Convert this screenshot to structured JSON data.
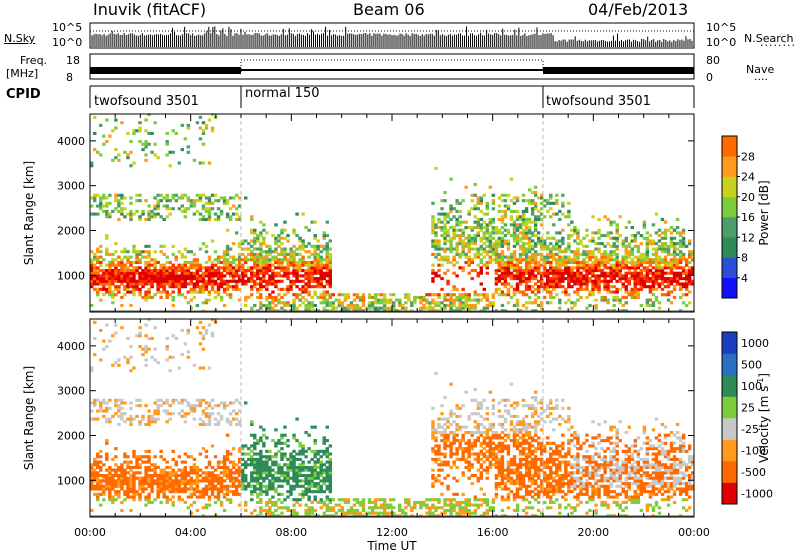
{
  "header": {
    "station": "Inuvik (fitACF)",
    "beam": "Beam 06",
    "date": "04/Feb/2013"
  },
  "summary_panels": {
    "nsky_label": "N.Sky",
    "nsky_ticks": [
      "10^5",
      "10^0"
    ],
    "nsearch_label": "N.Search",
    "nsearch_ticks": [
      "10^5",
      "10^0"
    ],
    "freq_label_top": "Freq.",
    "freq_label_unit": "[MHz]",
    "freq_ticks": [
      "18",
      "8"
    ],
    "nave_label": "Nave",
    "nave_ticks": [
      "80",
      "0"
    ],
    "cpid_label": "CPID",
    "cpid_segments": [
      {
        "name": "twofsound 3501",
        "start_h": 0,
        "end_h": 6
      },
      {
        "name": "normal 150",
        "start_h": 6,
        "end_h": 18
      },
      {
        "name": "twofsound 3501",
        "start_h": 18,
        "end_h": 24
      }
    ]
  },
  "colors": {
    "power": [
      "#1010ff",
      "#2a4fd6",
      "#2e8b57",
      "#4c9f6a",
      "#7ccd3c",
      "#c8d21e",
      "#ff9a1a",
      "#ff6a00",
      "#ff2a00",
      "#e00000"
    ],
    "velocity": [
      "#1a3fbf",
      "#2a6fc0",
      "#2e8b57",
      "#7ccd3c",
      "#c8c8c8",
      "#ff9a1a",
      "#ff6a00",
      "#e00000"
    ]
  },
  "chart_data": [
    {
      "type": "heatmap",
      "name": "power",
      "ylabel": "Slant Range [km]",
      "yticks": [
        1000,
        2000,
        3000,
        4000
      ],
      "ylim": [
        180,
        4600
      ],
      "xlim": [
        0,
        24
      ],
      "colorbar_label": "Power [dB]",
      "colorbar_ticks": [
        4,
        8,
        12,
        16,
        20,
        24,
        28
      ],
      "colorbar_range": [
        0,
        32
      ]
    },
    {
      "type": "heatmap",
      "name": "velocity",
      "ylabel": "Slant Range [km]",
      "yticks": [
        1000,
        2000,
        3000,
        4000
      ],
      "ylim": [
        180,
        4600
      ],
      "xlim": [
        0,
        24
      ],
      "xlabel": "Time UT",
      "xticks": [
        "00:00",
        "04:00",
        "08:00",
        "12:00",
        "16:00",
        "20:00",
        "00:00"
      ],
      "colorbar_label": "Velocity [m s^-1]",
      "colorbar_ticks": [
        "1000",
        "500",
        "100",
        "25",
        "-25",
        "-100",
        "-500",
        "-1000"
      ]
    }
  ]
}
